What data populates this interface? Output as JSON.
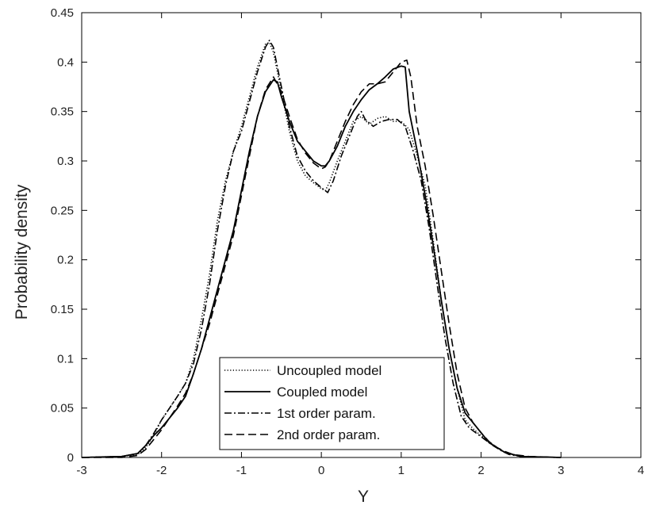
{
  "chart_data": {
    "type": "line",
    "xlabel": "Y",
    "ylabel": "Probability density",
    "xlim": [
      -3,
      4
    ],
    "ylim": [
      0,
      0.45
    ],
    "xticks": [
      -3,
      -2,
      -1,
      0,
      1,
      2,
      3,
      4
    ],
    "yticks": [
      0,
      0.05,
      0.1,
      0.15,
      0.2,
      0.25,
      0.3,
      0.35,
      0.4,
      0.45
    ],
    "grid": false,
    "legend_position": "bottom-center",
    "series": [
      {
        "name": "Uncoupled model",
        "dash": "dotted",
        "x": [
          -3.0,
          -2.5,
          -2.3,
          -2.2,
          -2.1,
          -2.0,
          -1.9,
          -1.8,
          -1.7,
          -1.6,
          -1.5,
          -1.4,
          -1.3,
          -1.2,
          -1.1,
          -1.0,
          -0.9,
          -0.8,
          -0.7,
          -0.65,
          -0.6,
          -0.5,
          -0.4,
          -0.3,
          -0.2,
          -0.1,
          0.0,
          0.05,
          0.1,
          0.2,
          0.3,
          0.4,
          0.5,
          0.6,
          0.7,
          0.8,
          0.9,
          1.0,
          1.1,
          1.2,
          1.3,
          1.4,
          1.5,
          1.6,
          1.7,
          1.8,
          1.9,
          2.0,
          2.1,
          2.2,
          2.3,
          2.5,
          3.0
        ],
        "y": [
          0.0,
          0.001,
          0.003,
          0.01,
          0.022,
          0.038,
          0.05,
          0.062,
          0.075,
          0.1,
          0.14,
          0.185,
          0.24,
          0.28,
          0.31,
          0.335,
          0.365,
          0.395,
          0.418,
          0.42,
          0.41,
          0.37,
          0.33,
          0.3,
          0.285,
          0.278,
          0.272,
          0.27,
          0.278,
          0.3,
          0.32,
          0.34,
          0.345,
          0.337,
          0.343,
          0.345,
          0.34,
          0.34,
          0.332,
          0.305,
          0.275,
          0.22,
          0.16,
          0.11,
          0.07,
          0.038,
          0.029,
          0.022,
          0.016,
          0.01,
          0.005,
          0.001,
          0.0
        ]
      },
      {
        "name": "Coupled model",
        "dash": "solid",
        "x": [
          -3.0,
          -2.5,
          -2.3,
          -2.2,
          -2.1,
          -2.0,
          -1.9,
          -1.8,
          -1.7,
          -1.6,
          -1.5,
          -1.4,
          -1.3,
          -1.2,
          -1.1,
          -1.0,
          -0.9,
          -0.8,
          -0.7,
          -0.6,
          -0.55,
          -0.5,
          -0.4,
          -0.3,
          -0.2,
          -0.1,
          0.0,
          0.05,
          0.1,
          0.2,
          0.3,
          0.4,
          0.5,
          0.6,
          0.7,
          0.8,
          0.9,
          1.0,
          1.05,
          1.1,
          1.2,
          1.3,
          1.4,
          1.5,
          1.6,
          1.7,
          1.8,
          1.9,
          2.0,
          2.1,
          2.2,
          2.3,
          2.5,
          3.0
        ],
        "y": [
          0.0,
          0.001,
          0.004,
          0.012,
          0.022,
          0.03,
          0.04,
          0.05,
          0.062,
          0.085,
          0.11,
          0.14,
          0.17,
          0.2,
          0.23,
          0.27,
          0.31,
          0.345,
          0.37,
          0.382,
          0.38,
          0.365,
          0.34,
          0.32,
          0.31,
          0.3,
          0.295,
          0.295,
          0.3,
          0.315,
          0.335,
          0.35,
          0.362,
          0.372,
          0.378,
          0.385,
          0.393,
          0.396,
          0.395,
          0.35,
          0.31,
          0.265,
          0.215,
          0.16,
          0.11,
          0.07,
          0.045,
          0.035,
          0.025,
          0.015,
          0.01,
          0.005,
          0.001,
          0.0
        ]
      },
      {
        "name": "1st order param.",
        "dash": "dashdot",
        "x": [
          -3.0,
          -2.5,
          -2.3,
          -2.2,
          -2.1,
          -2.0,
          -1.9,
          -1.8,
          -1.7,
          -1.6,
          -1.5,
          -1.4,
          -1.3,
          -1.2,
          -1.1,
          -1.0,
          -0.9,
          -0.8,
          -0.7,
          -0.65,
          -0.6,
          -0.5,
          -0.4,
          -0.3,
          -0.2,
          -0.1,
          0.0,
          0.08,
          0.15,
          0.25,
          0.35,
          0.45,
          0.5,
          0.55,
          0.65,
          0.75,
          0.85,
          0.95,
          1.05,
          1.15,
          1.25,
          1.35,
          1.45,
          1.55,
          1.65,
          1.75,
          1.85,
          1.95,
          2.05,
          2.15,
          2.25,
          2.35,
          2.5,
          3.0
        ],
        "y": [
          0.0,
          0.001,
          0.004,
          0.012,
          0.024,
          0.038,
          0.05,
          0.062,
          0.075,
          0.095,
          0.13,
          0.175,
          0.23,
          0.275,
          0.31,
          0.33,
          0.36,
          0.39,
          0.415,
          0.422,
          0.415,
          0.375,
          0.335,
          0.305,
          0.29,
          0.28,
          0.273,
          0.268,
          0.28,
          0.305,
          0.325,
          0.345,
          0.35,
          0.342,
          0.335,
          0.34,
          0.342,
          0.342,
          0.335,
          0.31,
          0.28,
          0.232,
          0.175,
          0.12,
          0.075,
          0.042,
          0.03,
          0.024,
          0.018,
          0.012,
          0.007,
          0.003,
          0.001,
          0.0
        ]
      },
      {
        "name": "2nd order param.",
        "dash": "dashed",
        "x": [
          -3.0,
          -2.5,
          -2.3,
          -2.2,
          -2.1,
          -2.0,
          -1.9,
          -1.8,
          -1.7,
          -1.6,
          -1.5,
          -1.4,
          -1.3,
          -1.2,
          -1.1,
          -1.0,
          -0.9,
          -0.8,
          -0.7,
          -0.6,
          -0.5,
          -0.4,
          -0.3,
          -0.2,
          -0.1,
          0.0,
          0.05,
          0.1,
          0.2,
          0.3,
          0.4,
          0.5,
          0.6,
          0.7,
          0.8,
          0.9,
          1.0,
          1.07,
          1.12,
          1.2,
          1.3,
          1.4,
          1.5,
          1.6,
          1.7,
          1.8,
          1.9,
          2.0,
          2.1,
          2.2,
          2.3,
          2.4,
          2.6,
          3.0
        ],
        "y": [
          0.0,
          0.0,
          0.002,
          0.008,
          0.018,
          0.028,
          0.04,
          0.052,
          0.065,
          0.085,
          0.11,
          0.135,
          0.165,
          0.195,
          0.225,
          0.265,
          0.305,
          0.345,
          0.372,
          0.385,
          0.37,
          0.345,
          0.322,
          0.308,
          0.298,
          0.292,
          0.294,
          0.3,
          0.32,
          0.34,
          0.357,
          0.37,
          0.378,
          0.378,
          0.38,
          0.39,
          0.4,
          0.402,
          0.385,
          0.335,
          0.295,
          0.245,
          0.19,
          0.135,
          0.085,
          0.05,
          0.035,
          0.025,
          0.016,
          0.01,
          0.006,
          0.003,
          0.001,
          0.0
        ]
      }
    ]
  }
}
